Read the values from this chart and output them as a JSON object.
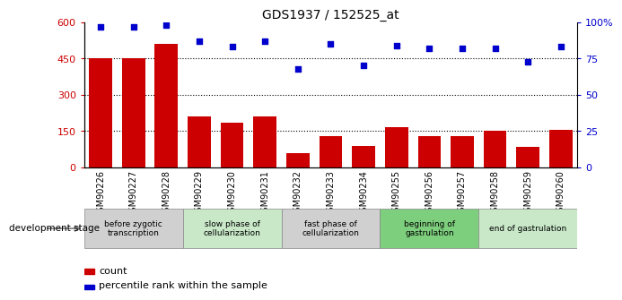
{
  "title": "GDS1937 / 152525_at",
  "samples": [
    "GSM90226",
    "GSM90227",
    "GSM90228",
    "GSM90229",
    "GSM90230",
    "GSM90231",
    "GSM90232",
    "GSM90233",
    "GSM90234",
    "GSM90255",
    "GSM90256",
    "GSM90257",
    "GSM90258",
    "GSM90259",
    "GSM90260"
  ],
  "counts": [
    450,
    450,
    510,
    210,
    185,
    210,
    60,
    130,
    90,
    165,
    130,
    130,
    150,
    85,
    155
  ],
  "percentiles": [
    97,
    97,
    98,
    87,
    83,
    87,
    68,
    85,
    70,
    84,
    82,
    82,
    82,
    73,
    83
  ],
  "bar_color": "#cc0000",
  "dot_color": "#0000cc",
  "ylim_left": [
    0,
    600
  ],
  "yticks_left": [
    0,
    150,
    300,
    450,
    600
  ],
  "ytick_labels_left": [
    "0",
    "150",
    "300",
    "450",
    "600"
  ],
  "yticks_right": [
    0,
    25,
    50,
    75,
    100
  ],
  "ytick_labels_right": [
    "0",
    "25",
    "50",
    "75",
    "100%"
  ],
  "stages": [
    {
      "label": "before zygotic\ntranscription",
      "start": 0,
      "end": 3,
      "color": "#d0d0d0"
    },
    {
      "label": "slow phase of\ncellularization",
      "start": 3,
      "end": 6,
      "color": "#c8e8c8"
    },
    {
      "label": "fast phase of\ncellularization",
      "start": 6,
      "end": 9,
      "color": "#d0d0d0"
    },
    {
      "label": "beginning of\ngastrulation",
      "start": 9,
      "end": 12,
      "color": "#7dce7d"
    },
    {
      "label": "end of gastrulation",
      "start": 12,
      "end": 15,
      "color": "#c8e8c8"
    }
  ],
  "dev_stage_label": "development stage",
  "legend_count_label": "count",
  "legend_pct_label": "percentile rank within the sample"
}
